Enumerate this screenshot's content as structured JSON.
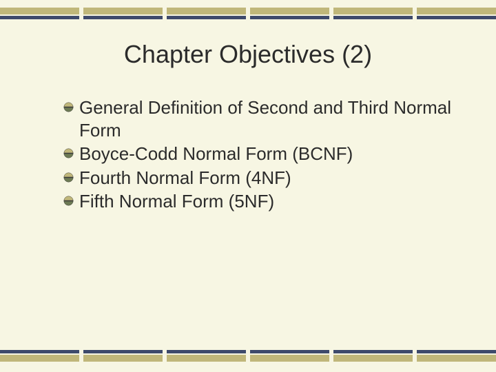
{
  "slide": {
    "background_color": "#f7f6e3",
    "title": "Chapter Objectives (2)",
    "title_color": "#2b2b2b",
    "title_fontsize": 36,
    "bullets": [
      "General Definition of Second and Third Normal Form",
      "Boyce-Codd Normal Form (BCNF)",
      "Fourth Normal Form (4NF)",
      "Fifth Normal Form (5NF)"
    ],
    "bullet_fontsize": 26,
    "bullet_color": "#2b2b2b",
    "bar": {
      "segments": 6,
      "khaki_color": "#c0b77a",
      "navy_color": "#3e4a6b",
      "gap": 6
    },
    "bullet_icon": {
      "top_color": "#c0b77a",
      "bottom_color": "#6d7a54",
      "divider_color": "#3a3a3a"
    }
  }
}
